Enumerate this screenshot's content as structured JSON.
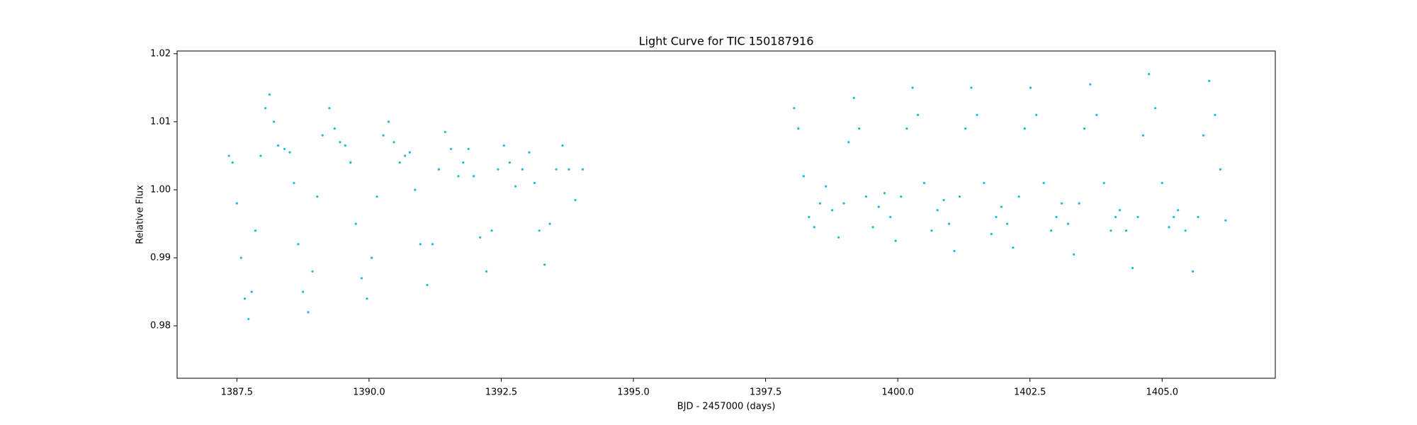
{
  "chart_data": {
    "type": "scatter",
    "title": "Light Curve for TIC 150187916",
    "x_label": "BJD - 2457000 (days)",
    "y_label": "Relative Flux",
    "color": "#17becf",
    "xlim": [
      1386.37,
      1407.14
    ],
    "ylim": [
      0.9723,
      1.0204
    ],
    "xticks": [
      {
        "value": 1387.5,
        "label": "1387.5"
      },
      {
        "value": 1390,
        "label": "1390.0"
      },
      {
        "value": 1392.5,
        "label": "1392.5"
      },
      {
        "value": 1395,
        "label": "1395.0"
      },
      {
        "value": 1397.5,
        "label": "1397.5"
      },
      {
        "value": 1400,
        "label": "1400.0"
      },
      {
        "value": 1402.5,
        "label": "1402.5"
      },
      {
        "value": 1405,
        "label": "1405.0"
      }
    ],
    "yticks": [
      0.98,
      0.99,
      {
        "value": 1,
        "label": "1.00"
      },
      1.01,
      1.02
    ],
    "x": [
      1387.35,
      1387.42,
      1387.5,
      1387.58,
      1387.65,
      1387.72,
      1387.78,
      1387.85,
      1387.95,
      1388.04,
      1388.12,
      1388.2,
      1388.28,
      1388.4,
      1388.5,
      1388.58,
      1388.66,
      1388.75,
      1388.85,
      1388.93,
      1389.02,
      1389.12,
      1389.25,
      1389.35,
      1389.45,
      1389.55,
      1389.65,
      1389.75,
      1389.86,
      1389.96,
      1390.05,
      1390.15,
      1390.27,
      1390.37,
      1390.47,
      1390.58,
      1390.68,
      1390.77,
      1390.87,
      1390.97,
      1391.1,
      1391.2,
      1391.32,
      1391.44,
      1391.55,
      1391.69,
      1391.78,
      1391.88,
      1391.98,
      1392.1,
      1392.22,
      1392.32,
      1392.44,
      1392.55,
      1392.66,
      1392.77,
      1392.9,
      1393.03,
      1393.13,
      1393.22,
      1393.32,
      1393.42,
      1393.54,
      1393.66,
      1393.78,
      1393.9,
      1394.04,
      1398.04,
      1398.12,
      1398.22,
      1398.32,
      1398.42,
      1398.53,
      1398.64,
      1398.76,
      1398.88,
      1398.98,
      1399.07,
      1399.17,
      1399.27,
      1399.4,
      1399.53,
      1399.64,
      1399.75,
      1399.86,
      1399.96,
      1400.06,
      1400.17,
      1400.28,
      1400.38,
      1400.5,
      1400.64,
      1400.75,
      1400.87,
      1400.97,
      1401.07,
      1401.17,
      1401.28,
      1401.39,
      1401.5,
      1401.63,
      1401.77,
      1401.86,
      1401.96,
      1402.07,
      1402.18,
      1402.29,
      1402.4,
      1402.51,
      1402.62,
      1402.76,
      1402.9,
      1403.0,
      1403.1,
      1403.22,
      1403.33,
      1403.43,
      1403.53,
      1403.64,
      1403.76,
      1403.9,
      1404.03,
      1404.12,
      1404.2,
      1404.32,
      1404.44,
      1404.54,
      1404.64,
      1404.75,
      1404.87,
      1405.0,
      1405.13,
      1405.22,
      1405.3,
      1405.44,
      1405.58,
      1405.68,
      1405.78,
      1405.89,
      1406.0,
      1406.1,
      1406.2
    ],
    "values": [
      1.005,
      1.004,
      0.998,
      0.99,
      0.984,
      0.981,
      0.985,
      0.994,
      1.005,
      1.012,
      1.014,
      1.01,
      1.0065,
      1.006,
      1.0055,
      1.001,
      0.992,
      0.985,
      0.982,
      0.988,
      0.999,
      1.008,
      1.012,
      1.009,
      1.007,
      1.0065,
      1.004,
      0.995,
      0.987,
      0.984,
      0.99,
      0.999,
      1.008,
      1.01,
      1.007,
      1.004,
      1.005,
      1.0055,
      1.0,
      0.992,
      0.986,
      0.992,
      1.003,
      1.0085,
      1.006,
      1.002,
      1.004,
      1.006,
      1.002,
      0.993,
      0.988,
      0.994,
      1.003,
      1.0065,
      1.004,
      1.0005,
      1.003,
      1.0055,
      1.001,
      0.994,
      0.989,
      0.995,
      1.003,
      1.0065,
      1.003,
      0.9985,
      1.003,
      1.012,
      1.009,
      1.002,
      0.996,
      0.9945,
      0.998,
      1.0005,
      0.997,
      0.993,
      0.998,
      1.007,
      1.0135,
      1.009,
      0.999,
      0.9945,
      0.9975,
      0.9995,
      0.996,
      0.9925,
      0.999,
      1.009,
      1.015,
      1.011,
      1.001,
      0.994,
      0.997,
      0.9985,
      0.995,
      0.991,
      0.999,
      1.009,
      1.015,
      1.011,
      1.001,
      0.9935,
      0.996,
      0.9975,
      0.995,
      0.9915,
      0.999,
      1.009,
      1.015,
      1.011,
      1.001,
      0.994,
      0.996,
      0.998,
      0.995,
      0.9905,
      0.998,
      1.009,
      1.0155,
      1.011,
      1.001,
      0.994,
      0.996,
      0.997,
      0.994,
      0.9885,
      0.996,
      1.008,
      1.017,
      1.012,
      1.001,
      0.9945,
      0.996,
      0.997,
      0.994,
      0.988,
      0.996,
      1.008,
      1.016,
      1.011,
      1.003,
      0.9955
    ]
  }
}
